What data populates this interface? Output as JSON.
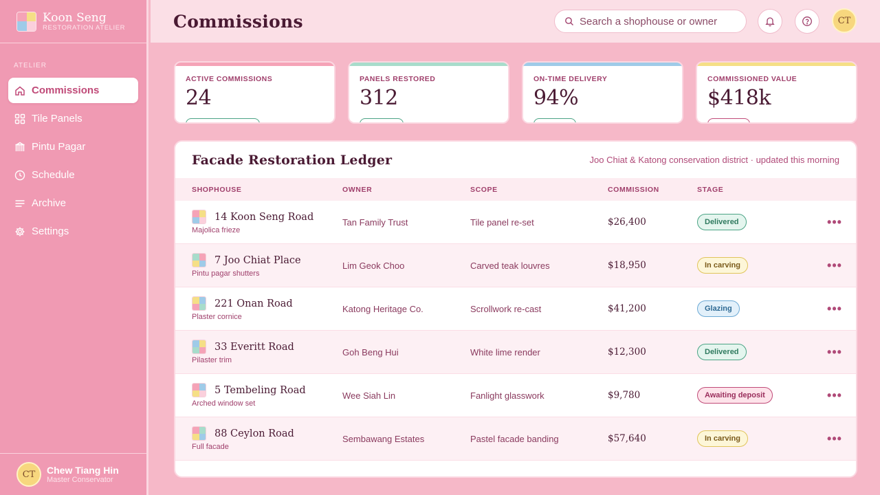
{
  "brand": {
    "title": "Koon Seng",
    "subtitle": "RESTORATION ATELIER"
  },
  "colors": {
    "rose": "#f5a3b7",
    "mint": "#a8dccb",
    "sky": "#9fcbe8",
    "butter": "#f5df86"
  },
  "sidebar": {
    "section": "ATELIER",
    "items": [
      {
        "label": "Commissions",
        "icon": "home-icon",
        "active": true
      },
      {
        "label": "Tile Panels",
        "icon": "grid-icon"
      },
      {
        "label": "Pintu Pagar",
        "icon": "door-icon"
      },
      {
        "label": "Schedule",
        "icon": "clock-icon"
      },
      {
        "label": "Archive",
        "icon": "list-icon"
      },
      {
        "label": "Settings",
        "icon": "gear-icon"
      }
    ]
  },
  "profile": {
    "initials": "CT",
    "name": "Chew Tiang Hin",
    "role": "Master Conservator"
  },
  "header": {
    "title": "Commissions",
    "search_placeholder": "Search a shophouse or owner",
    "avatar_initials": "CT"
  },
  "stats": [
    {
      "label": "ACTIVE COMMISSIONS",
      "value": "24",
      "accent": "#f5a3b7"
    },
    {
      "label": "PANELS RESTORED",
      "value": "312",
      "accent": "#a8dccb"
    },
    {
      "label": "ON-TIME DELIVERY",
      "value": "94%",
      "accent": "#9fcbe8"
    },
    {
      "label": "COMMISSIONED VALUE",
      "value": "$418k",
      "accent": "#f5df86"
    }
  ],
  "ledger": {
    "title": "Facade Restoration Ledger",
    "meta": "Joo Chiat & Katong conservation district · updated this morning",
    "columns": [
      "SHOPHOUSE",
      "OWNER",
      "SCOPE",
      "COMMISSION",
      "STAGE"
    ],
    "rows": [
      {
        "name": "14 Koon Seng Road",
        "sub": "Majolica frieze",
        "owner": "Tan Family Trust",
        "scope": "Tile panel re-set",
        "commission": "$26,400",
        "stage": "Delivered"
      },
      {
        "name": "7 Joo Chiat Place",
        "sub": "Pintu pagar shutters",
        "owner": "Lim Geok Choo",
        "scope": "Carved teak louvres",
        "commission": "$18,950",
        "stage": "In carving"
      },
      {
        "name": "221 Onan Road",
        "sub": "Plaster cornice",
        "owner": "Katong Heritage Co.",
        "scope": "Scrollwork re-cast",
        "commission": "$41,200",
        "stage": "Glazing"
      },
      {
        "name": "33 Everitt Road",
        "sub": "Pilaster trim",
        "owner": "Goh Beng Hui",
        "scope": "White lime render",
        "commission": "$12,300",
        "stage": "Delivered"
      },
      {
        "name": "5 Tembeling Road",
        "sub": "Arched window set",
        "owner": "Wee Siah Lin",
        "scope": "Fanlight glasswork",
        "commission": "$9,780",
        "stage": "Awaiting deposit"
      },
      {
        "name": "88 Ceylon Road",
        "sub": "Full facade",
        "owner": "Sembawang Estates",
        "scope": "Pastel facade banding",
        "commission": "$57,640",
        "stage": "In carving"
      }
    ]
  }
}
